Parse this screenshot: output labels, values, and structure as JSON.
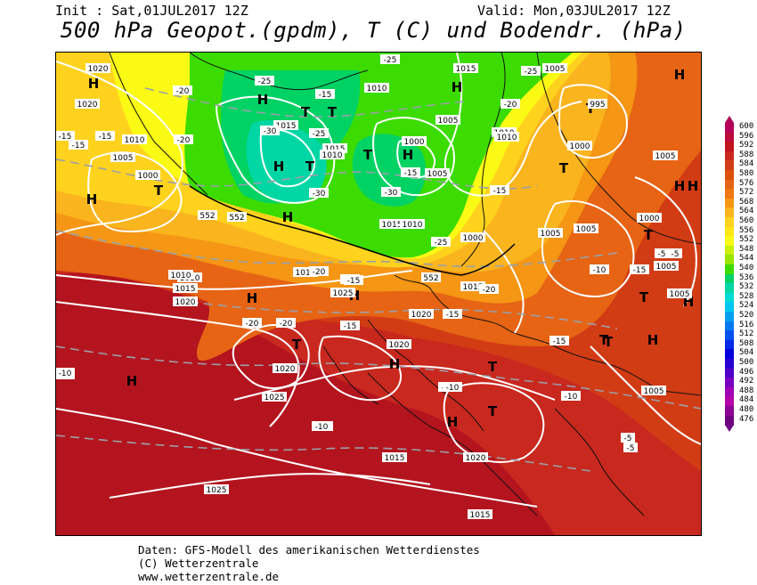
{
  "header": {
    "init": "Init : Sat,01JUL2017 12Z",
    "valid": "Valid: Mon,03JUL2017 12Z",
    "title": "500 hPa Geopot.(gpdm), T (C) und Bodendr. (hPa)"
  },
  "footer": {
    "line1": "Daten: GFS-Modell des amerikanischen Wetterdienstes",
    "line2": "(C) Wetterzentrale",
    "line3": "www.wetterzentrale.de"
  },
  "legend": {
    "levels": [
      {
        "v": "600",
        "c": "#b4005a"
      },
      {
        "v": "596",
        "c": "#bc0a3c"
      },
      {
        "v": "592",
        "c": "#c0141e"
      },
      {
        "v": "588",
        "c": "#c8281e"
      },
      {
        "v": "584",
        "c": "#d23c14"
      },
      {
        "v": "580",
        "c": "#dc500a"
      },
      {
        "v": "576",
        "c": "#e66414"
      },
      {
        "v": "572",
        "c": "#f07814"
      },
      {
        "v": "568",
        "c": "#f59614"
      },
      {
        "v": "564",
        "c": "#fab41e"
      },
      {
        "v": "560",
        "c": "#ffd21e"
      },
      {
        "v": "556",
        "c": "#ffe614"
      },
      {
        "v": "552",
        "c": "#fafa14"
      },
      {
        "v": "548",
        "c": "#c8f00a"
      },
      {
        "v": "544",
        "c": "#96e600"
      },
      {
        "v": "540",
        "c": "#3cdc00"
      },
      {
        "v": "536",
        "c": "#00d264"
      },
      {
        "v": "532",
        "c": "#00d7a5"
      },
      {
        "v": "528",
        "c": "#00dcd2"
      },
      {
        "v": "524",
        "c": "#00c8f0"
      },
      {
        "v": "520",
        "c": "#00a0f0"
      },
      {
        "v": "516",
        "c": "#0078f0"
      },
      {
        "v": "512",
        "c": "#0050f0"
      },
      {
        "v": "508",
        "c": "#0028e6"
      },
      {
        "v": "504",
        "c": "#0000dc"
      },
      {
        "v": "500",
        "c": "#2800d2"
      },
      {
        "v": "496",
        "c": "#5000c8"
      },
      {
        "v": "492",
        "c": "#7800be"
      },
      {
        "v": "488",
        "c": "#a000b4"
      },
      {
        "v": "484",
        "c": "#b400aa"
      },
      {
        "v": "480",
        "c": "#8c0096"
      },
      {
        "v": "476",
        "c": "#6e0082"
      }
    ]
  },
  "map": {
    "colors": {
      "deep_red": "#b4141e",
      "red": "#c8281e",
      "red_orange": "#d23c14",
      "orange": "#e66414",
      "light_orange": "#f59614",
      "amber": "#fab41e",
      "yellow": "#ffd21e",
      "light_yellow": "#fafa14",
      "green": "#3cdc00",
      "bright_green": "#00d264",
      "cyan": "#00d7a5"
    },
    "centers": [
      {
        "t": "H"
      },
      {
        "t": "H"
      },
      {
        "t": "T"
      },
      {
        "t": "H"
      },
      {
        "t": "T"
      },
      {
        "t": "T"
      },
      {
        "t": "H"
      },
      {
        "t": "T"
      },
      {
        "t": "H"
      },
      {
        "t": "T"
      },
      {
        "t": "H"
      },
      {
        "t": "H"
      },
      {
        "t": "T"
      },
      {
        "t": "T"
      },
      {
        "t": "H"
      },
      {
        "t": "H"
      },
      {
        "t": "T"
      },
      {
        "t": "H"
      },
      {
        "t": "H"
      },
      {
        "t": "T"
      },
      {
        "t": "H"
      },
      {
        "t": "T"
      },
      {
        "t": "T"
      },
      {
        "t": "T"
      },
      {
        "t": "H"
      },
      {
        "t": "T"
      },
      {
        "t": "H"
      },
      {
        "t": "H"
      },
      {
        "t": "H"
      },
      {
        "t": "T"
      },
      {
        "t": "H"
      }
    ],
    "pressure_labels": [
      "1020",
      "1020",
      "1010",
      "1005",
      "1000",
      "1015",
      "1010",
      "1005",
      "1015",
      "1010",
      "1015",
      "1000",
      "1005",
      "1010",
      "1005",
      "1015",
      "1010",
      "1010",
      "1000",
      "995",
      "1000",
      "1005",
      "1000",
      "1005",
      "1005",
      "1010",
      "1015",
      "1020",
      "1025",
      "1020",
      "1015",
      "1015",
      "1020",
      "1020",
      "1025",
      "1020",
      "1015",
      "1025",
      "1015",
      "1005",
      "1005",
      "1005",
      "1010"
    ],
    "temp_labels": [
      "-20",
      "-15",
      "-15",
      "-15",
      "-20",
      "-25",
      "-30",
      "-30",
      "-25",
      "-25",
      "-20",
      "-25",
      "-15",
      "-15",
      "-25",
      "-30",
      "-20",
      "-20",
      "-15",
      "-15",
      "-20",
      "-20",
      "-15",
      "-10",
      "-15",
      "-20",
      "-15",
      "-10",
      "-15",
      "-10",
      "-10",
      "-10",
      "-5",
      "-5",
      "-5",
      "-5",
      "-10",
      "-10",
      "-10"
    ],
    "geopot_labels": [
      "552",
      "552",
      "552"
    ]
  }
}
